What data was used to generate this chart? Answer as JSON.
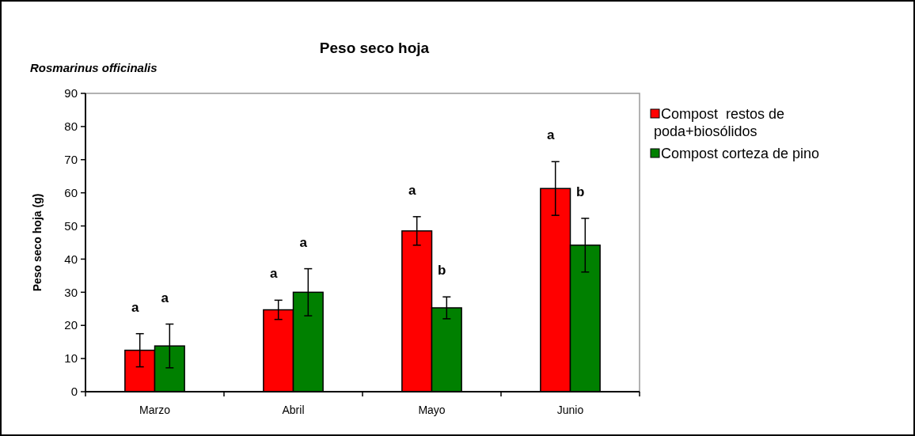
{
  "chart_data": {
    "type": "bar",
    "title": "Peso seco hoja",
    "subtitle": "Rosmarinus officinalis",
    "ylabel": "Peso seco hoja (g)",
    "categories": [
      "Marzo",
      "Abril",
      "Mayo",
      "Junio"
    ],
    "series": [
      {
        "name": "Compost  restos de poda+biosólidos",
        "color": "#ff0000",
        "values": [
          12.5,
          24.7,
          48.5,
          61.3
        ],
        "errors": [
          5,
          2.9,
          4.3,
          8.1
        ]
      },
      {
        "name": "Compost corteza de pino",
        "color": "#008000",
        "values": [
          13.8,
          30.0,
          25.3,
          44.2
        ],
        "errors": [
          6.6,
          7.1,
          3.3,
          8.1
        ]
      }
    ],
    "ylim": [
      0,
      90
    ],
    "yticks": [
      0,
      10,
      20,
      30,
      40,
      50,
      60,
      70,
      80,
      90
    ],
    "grid": false,
    "legend": "right",
    "annotations": [
      "a",
      "a",
      "a",
      "a",
      "a",
      "b",
      "a",
      "b"
    ]
  }
}
